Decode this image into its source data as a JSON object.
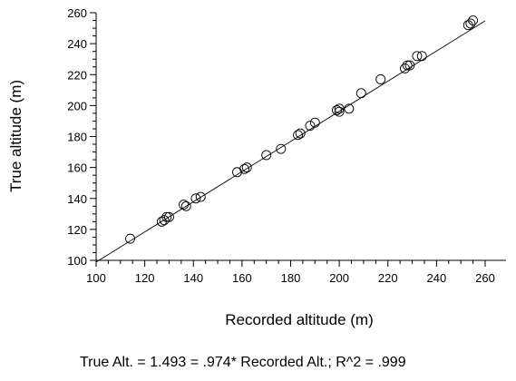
{
  "chart_data": {
    "type": "scatter",
    "xlabel": "Recorded altitude (m)",
    "ylabel": "True altitude (m)",
    "xlim": [
      100,
      260
    ],
    "ylim": [
      100,
      260
    ],
    "xticks": [
      "100",
      "120",
      "140",
      "160",
      "180",
      "200",
      "220",
      "240",
      "260"
    ],
    "yticks": [
      "100",
      "120",
      "140",
      "160",
      "180",
      "200",
      "220",
      "240",
      "260"
    ],
    "grid": false,
    "regression_line": {
      "intercept": 1.493,
      "slope": 0.974,
      "r_squared": ".999"
    },
    "caption": "True Alt. = 1.493 = .974* Recorded Alt.; R^2 = .999",
    "points": [
      {
        "x": 114,
        "y": 114
      },
      {
        "x": 127,
        "y": 125
      },
      {
        "x": 128,
        "y": 126
      },
      {
        "x": 129,
        "y": 128
      },
      {
        "x": 130,
        "y": 128
      },
      {
        "x": 136,
        "y": 136
      },
      {
        "x": 137,
        "y": 135
      },
      {
        "x": 141,
        "y": 140
      },
      {
        "x": 143,
        "y": 141
      },
      {
        "x": 158,
        "y": 157
      },
      {
        "x": 161,
        "y": 159
      },
      {
        "x": 162,
        "y": 160
      },
      {
        "x": 170,
        "y": 168
      },
      {
        "x": 176,
        "y": 172
      },
      {
        "x": 183,
        "y": 181
      },
      {
        "x": 184,
        "y": 182
      },
      {
        "x": 188,
        "y": 187
      },
      {
        "x": 190,
        "y": 189
      },
      {
        "x": 199,
        "y": 197
      },
      {
        "x": 200,
        "y": 196
      },
      {
        "x": 200,
        "y": 198
      },
      {
        "x": 204,
        "y": 198
      },
      {
        "x": 209,
        "y": 208
      },
      {
        "x": 217,
        "y": 217
      },
      {
        "x": 227,
        "y": 224
      },
      {
        "x": 228,
        "y": 226
      },
      {
        "x": 229,
        "y": 226
      },
      {
        "x": 232,
        "y": 232
      },
      {
        "x": 234,
        "y": 232
      },
      {
        "x": 253,
        "y": 252
      },
      {
        "x": 254,
        "y": 253
      },
      {
        "x": 255,
        "y": 255
      }
    ]
  }
}
